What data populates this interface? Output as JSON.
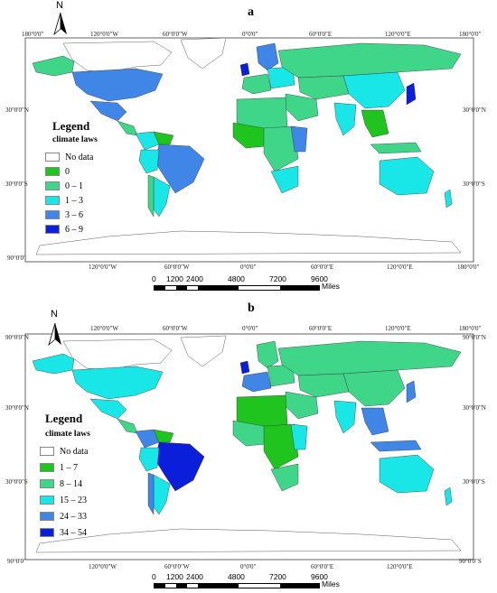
{
  "colors": {
    "nodata": "#ffffff",
    "c1": "#1fc41f",
    "c2": "#3fd68a",
    "c3": "#19e6e6",
    "c4": "#3f86e6",
    "c5": "#0b1ed9",
    "outline": "#333333"
  },
  "panels": [
    {
      "letter": "a",
      "legend_title": "Legend",
      "legend_sub": "climate laws",
      "legend": [
        {
          "label": "No data",
          "color": "#ffffff"
        },
        {
          "label": "0",
          "color": "#1fc41f"
        },
        {
          "label": "0 – 1",
          "color": "#3fd68a"
        },
        {
          "label": "1 – 3",
          "color": "#19e6e6"
        },
        {
          "label": "3 – 6",
          "color": "#3f86e6"
        },
        {
          "label": "6 – 9",
          "color": "#0b1ed9"
        }
      ],
      "top_labels": [
        "180°0'0\"",
        "120°0'0\"W",
        "60°0'0\"W",
        "0°0'0\"",
        "60°0'0\"E",
        "120°0'0\"E",
        "180°0'0\""
      ],
      "bottom_labels": [
        "120°0'0\"W",
        "60°0'0\"W",
        "0°0'0\"",
        "60°0'0\"E",
        "120°0'0\"E",
        "180°0'0\""
      ],
      "left_labels": [
        "30°0'0\"N",
        "30°0'0\"S",
        "90°0'0\""
      ],
      "right_labels": [
        "30°0'0\"N",
        "30°0'0\"S"
      ],
      "north": "N",
      "scale_ticks": [
        "0",
        "1200",
        "2400",
        "4800",
        "7200",
        "9600"
      ],
      "scale_unit": "Miles"
    },
    {
      "letter": "b",
      "legend_title": "Legend",
      "legend_sub": "climate laws",
      "legend": [
        {
          "label": "No data",
          "color": "#ffffff"
        },
        {
          "label": "1 – 7",
          "color": "#1fc41f"
        },
        {
          "label": "8 – 14",
          "color": "#3fd68a"
        },
        {
          "label": "15 – 23",
          "color": "#19e6e6"
        },
        {
          "label": "24 – 33",
          "color": "#3f86e6"
        },
        {
          "label": "34 – 54",
          "color": "#0b1ed9"
        }
      ],
      "top_labels": [
        "120°0'0\"W",
        "60°0'0\"W",
        "0°0'0\"",
        "60°0'0\"E",
        "120°0'0\"E",
        "180°0'0\""
      ],
      "bottom_labels": [
        "120°0'0\"W",
        "60°0'0\"W",
        "0°0'0\"",
        "60°0'0\"E",
        "120°0'0\"E"
      ],
      "left_labels": [
        "90°0'0\"N",
        "30°0'0\"N",
        "30°0'0\"S",
        "90°0'0\""
      ],
      "right_labels": [
        "90°0'0\"N",
        "30°0'0\"N",
        "30°0'0\"S",
        "90°0'0\"S"
      ],
      "north": "N",
      "scale_ticks": [
        "0",
        "1200",
        "2400",
        "4800",
        "7200",
        "9600"
      ],
      "scale_unit": "Miles"
    }
  ]
}
